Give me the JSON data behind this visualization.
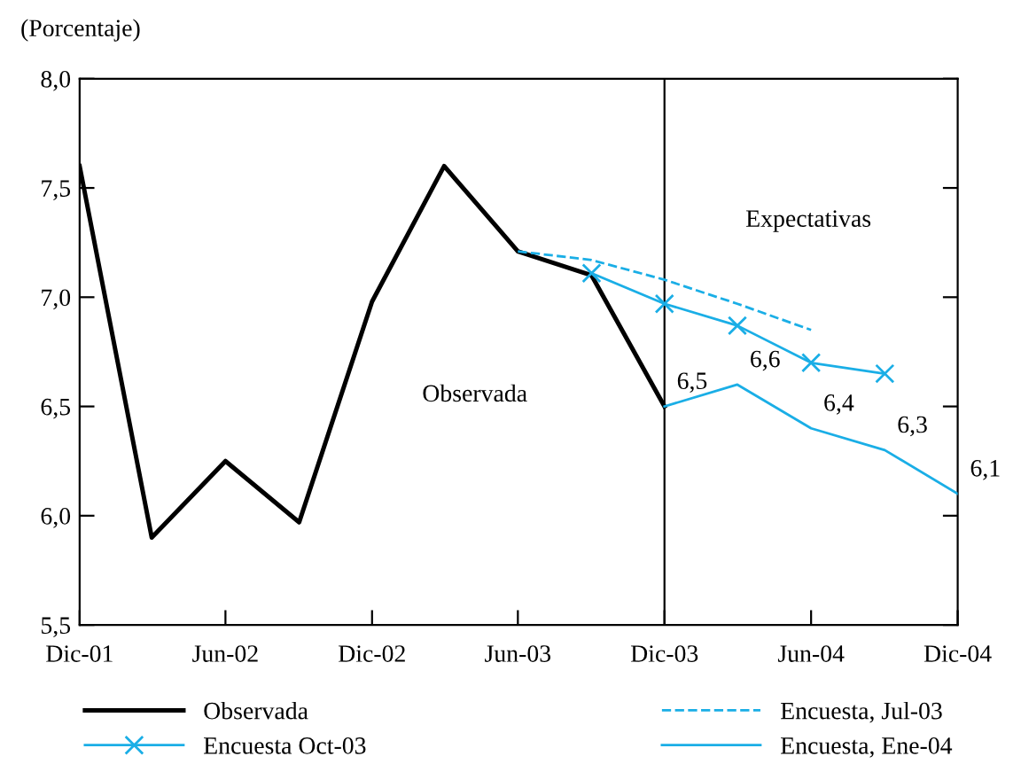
{
  "chart_data": {
    "type": "line",
    "ylabel": "(Porcentaje)",
    "xlim": [
      "2001-12",
      "2004-12"
    ],
    "xticks": [
      {
        "value": "2001-12",
        "label": "Dic-01"
      },
      {
        "value": "2002-06",
        "label": "Jun-02"
      },
      {
        "value": "2002-12",
        "label": "Dic-02"
      },
      {
        "value": "2003-06",
        "label": "Jun-03"
      },
      {
        "value": "2003-12",
        "label": "Dic-03"
      },
      {
        "value": "2004-06",
        "label": "Jun-04"
      },
      {
        "value": "2004-12",
        "label": "Dic-04"
      }
    ],
    "ylim": [
      5.5,
      8.0
    ],
    "yticks": [
      {
        "value": 5.5,
        "label": "5,5"
      },
      {
        "value": 6.0,
        "label": "6,0"
      },
      {
        "value": 6.5,
        "label": "6,5"
      },
      {
        "value": 7.0,
        "label": "7,0"
      },
      {
        "value": 7.5,
        "label": "7,5"
      },
      {
        "value": 8.0,
        "label": "8,0"
      }
    ],
    "grid": false,
    "legend": "bottom",
    "series": [
      {
        "name": "Observada",
        "color": "#000000",
        "x": [
          "2001-12",
          "2002-03",
          "2002-06",
          "2002-09",
          "2002-12",
          "2003-03",
          "2003-06",
          "2003-09",
          "2003-12"
        ],
        "values": [
          7.6,
          5.9,
          6.25,
          5.97,
          6.98,
          7.6,
          7.21,
          7.1,
          6.5
        ]
      },
      {
        "name": "Encuesta Oct-03",
        "color": "#1aaee6",
        "marker": "cross",
        "x": [
          "2003-09",
          "2003-12",
          "2004-03",
          "2004-06",
          "2004-09"
        ],
        "values": [
          7.11,
          6.97,
          6.87,
          6.7,
          6.65
        ]
      },
      {
        "name": "Encuesta, Jul-03",
        "color": "#1aaee6",
        "line_style": "dashed",
        "x": [
          "2003-06",
          "2003-09",
          "2003-12",
          "2004-03",
          "2004-06"
        ],
        "values": [
          7.21,
          7.17,
          7.08,
          6.97,
          6.85
        ]
      },
      {
        "name": "Encuesta, Ene-04",
        "color": "#1aaee6",
        "x": [
          "2003-12",
          "2004-03",
          "2004-06",
          "2004-09",
          "2004-12"
        ],
        "values": [
          6.5,
          6.6,
          6.4,
          6.3,
          6.1
        ],
        "value_labels": [
          "6,5",
          "6,6",
          "6,4",
          "6,3",
          "6,1"
        ]
      }
    ],
    "ref_lines": [
      {
        "axis": "x",
        "value": "2003-12",
        "color": "#000000"
      }
    ],
    "annotations": [
      "Observada",
      "Expectativas"
    ]
  }
}
